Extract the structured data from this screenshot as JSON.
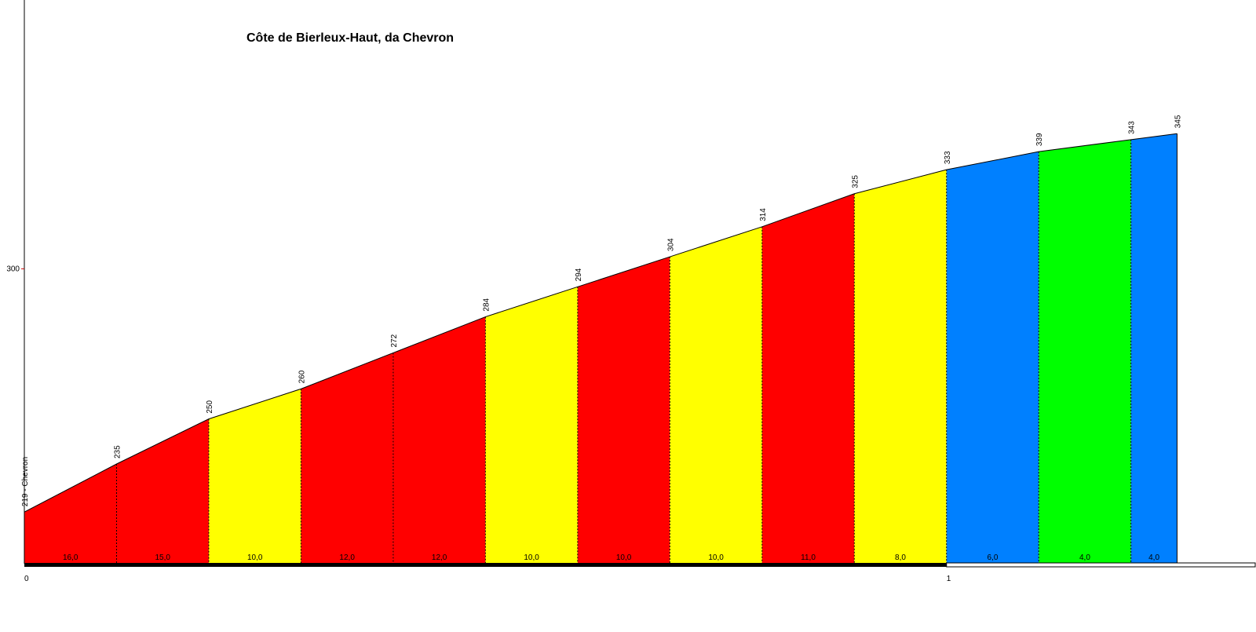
{
  "chart_data": {
    "type": "area",
    "title": "Côte de Bierleux-Haut, da Chevron",
    "xlabel": "",
    "ylabel": "",
    "xlim": [
      0,
      1.3356
    ],
    "ylim": [
      201.8,
      389.5
    ],
    "grid": false,
    "x_ticks": [
      {
        "value": 0,
        "label": "0"
      },
      {
        "value": 1,
        "label": "1"
      }
    ],
    "y_ticks": [
      {
        "value": 300,
        "label": "300"
      }
    ],
    "points": [
      {
        "x": 0.0,
        "elevation": 219,
        "label": "219 - Chevron"
      },
      {
        "x": 0.1,
        "elevation": 235,
        "label": "235"
      },
      {
        "x": 0.2,
        "elevation": 250,
        "label": "250"
      },
      {
        "x": 0.3,
        "elevation": 260,
        "label": "260"
      },
      {
        "x": 0.4,
        "elevation": 272,
        "label": "272"
      },
      {
        "x": 0.5,
        "elevation": 284,
        "label": "284"
      },
      {
        "x": 0.6,
        "elevation": 294,
        "label": "294"
      },
      {
        "x": 0.7,
        "elevation": 304,
        "label": "304"
      },
      {
        "x": 0.8,
        "elevation": 314,
        "label": "314"
      },
      {
        "x": 0.9,
        "elevation": 325,
        "label": "325"
      },
      {
        "x": 1.0,
        "elevation": 333,
        "label": "333"
      },
      {
        "x": 1.1,
        "elevation": 339,
        "label": "339"
      },
      {
        "x": 1.2,
        "elevation": 343,
        "label": "343"
      },
      {
        "x": 1.25,
        "elevation": 345,
        "label": "345"
      }
    ],
    "segments": [
      {
        "gradient": "16,0",
        "color": "#ff0000"
      },
      {
        "gradient": "15,0",
        "color": "#ff0000"
      },
      {
        "gradient": "10,0",
        "color": "#ffff00"
      },
      {
        "gradient": "12,0",
        "color": "#ff0000"
      },
      {
        "gradient": "12,0",
        "color": "#ff0000"
      },
      {
        "gradient": "10,0",
        "color": "#ffff00"
      },
      {
        "gradient": "10,0",
        "color": "#ff0000"
      },
      {
        "gradient": "10,0",
        "color": "#ffff00"
      },
      {
        "gradient": "11,0",
        "color": "#ff0000"
      },
      {
        "gradient": "8,0",
        "color": "#ffff00"
      },
      {
        "gradient": "6,0",
        "color": "#0080ff"
      },
      {
        "gradient": "4,0",
        "color": "#00ff00"
      },
      {
        "gradient": "4,0",
        "color": "#0080ff"
      }
    ]
  }
}
